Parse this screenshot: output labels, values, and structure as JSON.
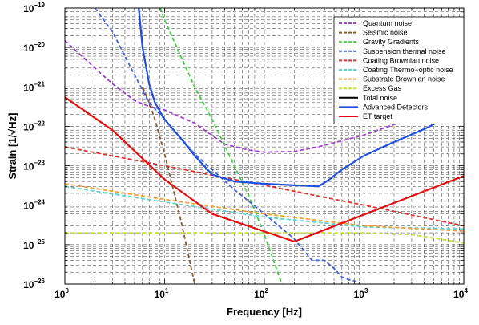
{
  "chart_data": {
    "type": "line",
    "xlabel": "Frequency [Hz]",
    "ylabel": "Strain [1/√Hz]",
    "x_scale": "log",
    "y_scale": "log",
    "xlim": [
      1,
      10000
    ],
    "ylim": [
      1e-26,
      1e-19
    ],
    "x_ticks": [
      {
        "value": 1,
        "base": "10",
        "exp": "0"
      },
      {
        "value": 10,
        "base": "10",
        "exp": "1"
      },
      {
        "value": 100,
        "base": "10",
        "exp": "2"
      },
      {
        "value": 1000,
        "base": "10",
        "exp": "3"
      },
      {
        "value": 10000,
        "base": "10",
        "exp": "4"
      }
    ],
    "y_ticks": [
      {
        "value": 1e-26,
        "base": "10",
        "exp": "−26"
      },
      {
        "value": 1e-25,
        "base": "10",
        "exp": "−25"
      },
      {
        "value": 1e-24,
        "base": "10",
        "exp": "−24"
      },
      {
        "value": 1e-23,
        "base": "10",
        "exp": "−23"
      },
      {
        "value": 1e-22,
        "base": "10",
        "exp": "−22"
      },
      {
        "value": 1e-21,
        "base": "10",
        "exp": "−21"
      },
      {
        "value": 1e-20,
        "base": "10",
        "exp": "−20"
      },
      {
        "value": 1e-19,
        "base": "10",
        "exp": "−19"
      }
    ],
    "grid": true,
    "legend_position": "top-right",
    "series": [
      {
        "name": "Quantum noise",
        "color": "#a040d0",
        "style": "dashed",
        "x": [
          1,
          2,
          3,
          5,
          7,
          10,
          20,
          40,
          70,
          100,
          200,
          300,
          400,
          1000,
          3000,
          10000
        ],
        "y": [
          1.5e-20,
          3e-21,
          1.2e-21,
          4.5e-22,
          3.2e-22,
          2.6e-22,
          1.2e-22,
          3.5e-23,
          2.5e-23,
          2.2e-23,
          2.3e-23,
          2.8e-23,
          3.3e-23,
          6e-23,
          1.6e-22,
          5e-22
        ]
      },
      {
        "name": "Seismic noise",
        "color": "#8b5a2b",
        "style": "dashed",
        "x": [
          6,
          7,
          8,
          10,
          12,
          15,
          20
        ],
        "y": [
          1e-21,
          4e-22,
          1.5e-22,
          2e-23,
          3e-24,
          3e-25,
          1e-26
        ]
      },
      {
        "name": "Gravity Gradients",
        "color": "#40d040",
        "style": "dashed",
        "x": [
          9,
          10,
          15,
          20,
          30,
          50,
          70,
          100,
          150
        ],
        "y": [
          1e-19,
          5e-20,
          5e-21,
          1e-21,
          1.5e-22,
          1e-23,
          1.7e-24,
          1.8e-25,
          1e-26
        ]
      },
      {
        "name": "Suspension thermal noise",
        "color": "#4060e0",
        "style": "dashed",
        "x": [
          2,
          3,
          5,
          7,
          10,
          20,
          30,
          50,
          100,
          200,
          300,
          400,
          500,
          600,
          700,
          800,
          900
        ],
        "y": [
          1e-19,
          2.5e-20,
          2e-21,
          4e-22,
          1.5e-22,
          2e-23,
          8e-24,
          2.5e-24,
          6e-25,
          1.4e-25,
          4e-26,
          4e-26,
          2.5e-26,
          1.5e-26,
          1.3e-26,
          1.2e-26,
          1e-26
        ]
      },
      {
        "name": "Coating Brownian noise",
        "color": "#e03030",
        "style": "dashed",
        "x": [
          1,
          10,
          100,
          1000,
          10000
        ],
        "y": [
          3e-23,
          1e-23,
          3.2e-24,
          1e-24,
          3e-25
        ]
      },
      {
        "name": "Coating Thermo−optic noise",
        "color": "#60d0d0",
        "style": "dashed",
        "x": [
          1,
          10,
          100,
          1000,
          10000
        ],
        "y": [
          3e-24,
          1.2e-24,
          5e-25,
          2.8e-25,
          2.5e-25
        ]
      },
      {
        "name": "Substrate Brownian noise",
        "color": "#f0a030",
        "style": "dashed",
        "x": [
          1,
          10,
          100,
          1000,
          10000
        ],
        "y": [
          3.5e-24,
          1.4e-24,
          6e-25,
          3e-25,
          2.2e-25
        ]
      },
      {
        "name": "Excess Gas",
        "color": "#c8e030",
        "style": "dashed",
        "x": [
          1,
          100,
          1000,
          3000,
          10000
        ],
        "y": [
          2e-25,
          2e-25,
          2e-25,
          1.8e-25,
          1.1e-25
        ]
      },
      {
        "name": "Total noise",
        "color": "#000000",
        "style": "solid",
        "x": [],
        "y": []
      },
      {
        "name": "Advanced Detectors",
        "color": "#2050e0",
        "style": "solid",
        "x": [
          5.5,
          6,
          7,
          8,
          10,
          15,
          20,
          30,
          50,
          100,
          200,
          350,
          450,
          600,
          1000,
          2000,
          4000,
          10000
        ],
        "y": [
          1e-19,
          1e-20,
          1.2e-21,
          4e-22,
          1.5e-22,
          4.5e-23,
          1.8e-23,
          6e-24,
          4e-24,
          3.5e-24,
          3.2e-24,
          3e-24,
          4.5e-24,
          8e-24,
          1.8e-23,
          4e-23,
          8.5e-23,
          2.7e-22
        ]
      },
      {
        "name": "ET target",
        "color": "#e01010",
        "style": "solid",
        "x": [
          1,
          3,
          10,
          30,
          200,
          10000
        ],
        "y": [
          5.5e-22,
          8e-23,
          4.5e-24,
          6e-25,
          1.2e-25,
          5.5e-24
        ]
      }
    ]
  }
}
